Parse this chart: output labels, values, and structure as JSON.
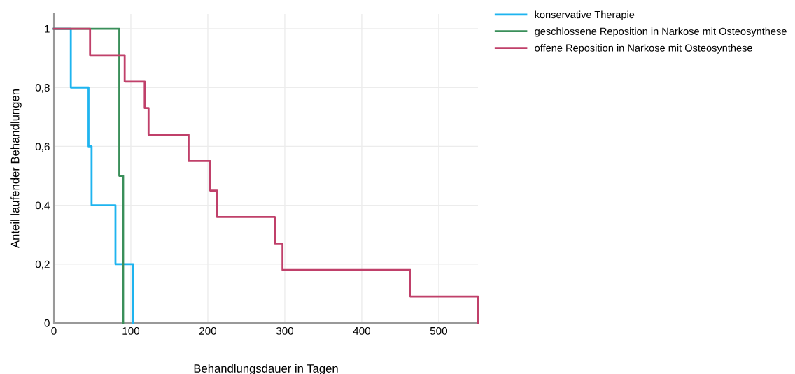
{
  "chart_data": {
    "type": "step",
    "xlabel": "Behandlungsdauer in Tagen",
    "ylabel": "Anteil laufender Behandlungen",
    "xlim": [
      0,
      551
    ],
    "xticks": [
      0,
      100,
      200,
      300,
      400,
      500
    ],
    "ylim": [
      0,
      1.05
    ],
    "yticks": [
      {
        "value": 0,
        "label": "0"
      },
      {
        "value": 0.2,
        "label": "0,2"
      },
      {
        "value": 0.4,
        "label": "0,4"
      },
      {
        "value": 0.6,
        "label": "0,6"
      },
      {
        "value": 0.8,
        "label": "0,8"
      },
      {
        "value": 1,
        "label": "1"
      }
    ],
    "grid": true,
    "legend": "top right",
    "marker": "none",
    "line_style": "solid",
    "series": [
      {
        "name": "konservative Therapie",
        "color": "#1eb4ef",
        "x": [
          0,
          22,
          45,
          49,
          80,
          103
        ],
        "values": [
          1,
          0.8,
          0.6,
          0.4,
          0.2,
          0
        ]
      },
      {
        "name": "geschlossene Reposition in Narkose mit Osteosynthese",
        "color": "#3a8f5a",
        "x": [
          0,
          85,
          90
        ],
        "values": [
          1,
          0.5,
          0
        ]
      },
      {
        "name": "offene Reposition in Narkose mit Osteosynthese",
        "color": "#c0406a",
        "x": [
          0,
          47,
          92,
          118,
          123,
          175,
          203,
          212,
          287,
          297,
          463,
          551
        ],
        "values": [
          1,
          0.91,
          0.82,
          0.73,
          0.64,
          0.55,
          0.45,
          0.36,
          0.27,
          0.18,
          0.09,
          0
        ]
      }
    ]
  }
}
